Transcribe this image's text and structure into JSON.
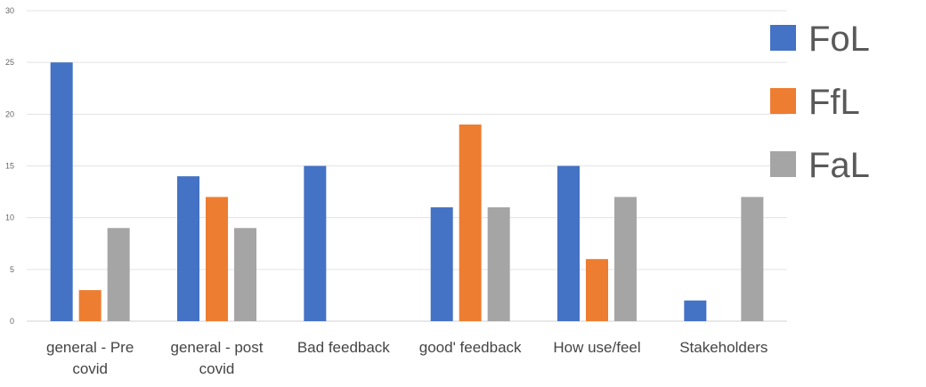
{
  "chart_data": {
    "type": "bar",
    "title": "",
    "xlabel": "",
    "ylabel": "",
    "ylim": [
      0,
      30
    ],
    "yticks": [
      0,
      5,
      10,
      15,
      20,
      25,
      30
    ],
    "grid": true,
    "legend_position": "right",
    "categories": [
      [
        "general - Pre",
        "covid"
      ],
      [
        "general - post",
        "covid"
      ],
      [
        "Bad feedback"
      ],
      [
        "good' feedback"
      ],
      [
        "How use/feel"
      ],
      [
        "Stakeholders"
      ]
    ],
    "series": [
      {
        "name": "FoL",
        "color": "#4472C4",
        "values": [
          25,
          14,
          15,
          11,
          15,
          2
        ]
      },
      {
        "name": "FfL",
        "color": "#ED7D31",
        "values": [
          3,
          12,
          0,
          19,
          6,
          0
        ]
      },
      {
        "name": "FaL",
        "color": "#A5A5A5",
        "values": [
          9,
          9,
          0,
          11,
          12,
          12
        ]
      }
    ]
  }
}
